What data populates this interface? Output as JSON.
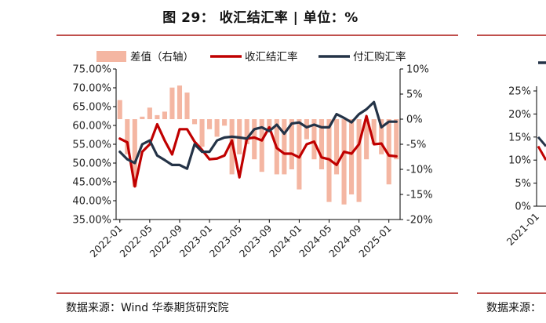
{
  "figure": {
    "title": "图 29：  收汇结汇率 | 单位：%",
    "source": "数据来源：Wind 华泰期货研究院",
    "right_panel_source": "数据来源：",
    "colors": {
      "rule": "#c0504d",
      "bar": "#f4b6a2",
      "settlement": "#c00000",
      "purchase": "#243347"
    }
  },
  "chart_data": [
    {
      "type": "bar+line",
      "title": "",
      "legend": {
        "placement": "top",
        "entries": [
          "差值（右轴）",
          "收汇结汇率",
          "付汇购汇率"
        ]
      },
      "x_tick_labels": [
        "2022-01",
        "2022-05",
        "2022-09",
        "2023-01",
        "2023-05",
        "2023-09",
        "2024-01",
        "2024-05",
        "2024-09",
        "2025-01"
      ],
      "x_tick_index": [
        0,
        4,
        8,
        12,
        16,
        20,
        24,
        28,
        32,
        36
      ],
      "left_axis": {
        "ylim": [
          35,
          75
        ],
        "ticks": [
          35,
          40,
          45,
          50,
          55,
          60,
          65,
          70,
          75
        ],
        "tick_labels": [
          "35.00%",
          "40.00%",
          "45.00%",
          "50.00%",
          "55.00%",
          "60.00%",
          "65.00%",
          "70.00%",
          "75.00%"
        ]
      },
      "right_axis": {
        "ylim": [
          -20,
          10
        ],
        "ticks": [
          -20,
          -15,
          -10,
          -5,
          0,
          5,
          10
        ],
        "tick_labels": [
          "-20%",
          "-15%",
          "-10%",
          "-5%",
          "0%",
          "5%",
          "10%"
        ]
      },
      "series": [
        {
          "name": "差值（右轴）",
          "type": "bar",
          "axis": "right",
          "values": [
            3.8,
            -7,
            -13.5,
            0.5,
            2.3,
            0.8,
            1.5,
            6.3,
            6.7,
            5.3,
            -1,
            -5.5,
            -2,
            -3.5,
            -1.3,
            -11,
            -7,
            -5,
            -8,
            -10.5,
            -2.5,
            -11,
            -11,
            -10,
            -14,
            -4,
            -8,
            -10,
            -16.5,
            -11,
            -17,
            -15,
            -16.5,
            -8,
            -5,
            -7,
            -13,
            -8
          ]
        },
        {
          "name": "收汇结汇率",
          "type": "line",
          "axis": "left",
          "values": [
            56.5,
            55.5,
            43.8,
            53,
            55,
            60.3,
            56,
            52.3,
            59,
            59,
            55.7,
            53.5,
            51,
            51.2,
            52,
            56,
            46.2,
            56.5,
            56.8,
            56,
            59.5,
            54,
            52.5,
            52.5,
            51.5,
            55,
            55.7,
            51.5,
            51,
            49.5,
            53,
            52.5,
            55,
            62.5,
            55,
            55.2,
            52,
            51.8
          ]
        },
        {
          "name": "付汇购汇率",
          "type": "line",
          "axis": "left",
          "values": [
            53,
            51,
            50,
            55,
            56,
            52,
            50.8,
            49.5,
            49.5,
            48.5,
            55,
            53,
            53,
            56,
            56.8,
            57,
            56.8,
            56.5,
            59,
            59.5,
            58.5,
            60.2,
            57.8,
            60.5,
            60.8,
            59.5,
            60.2,
            59.5,
            59.5,
            63,
            62,
            60.8,
            63,
            64.3,
            66.2,
            59.5,
            61,
            61
          ]
        }
      ]
    },
    {
      "type": "line",
      "title": "",
      "partial": true,
      "left_axis": {
        "ticks": [
          0,
          5,
          10,
          15,
          20,
          25
        ],
        "tick_labels": [
          "0%",
          "5%",
          "10%",
          "15%",
          "20%",
          "25%"
        ]
      },
      "x_tick_labels": [
        "2021-01"
      ],
      "series": [
        {
          "name": "",
          "values": [
            15,
            13
          ]
        },
        {
          "name": "",
          "values": [
            13,
            10
          ]
        }
      ]
    }
  ]
}
